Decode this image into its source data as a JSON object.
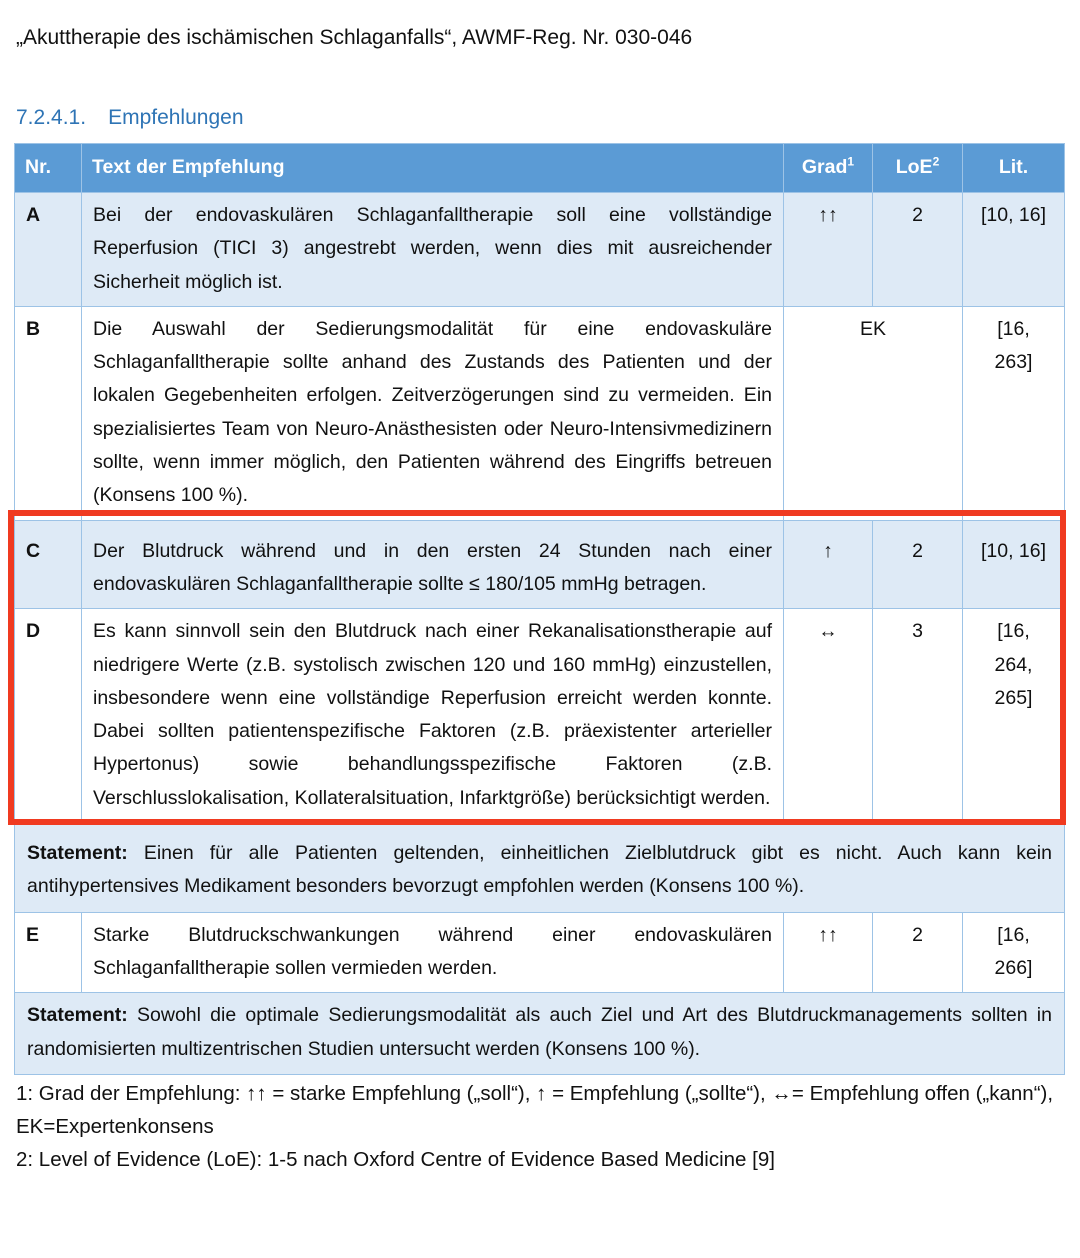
{
  "document_title": "„Akuttherapie des ischämischen Schlaganfalls“, AWMF-Reg. Nr. 030-046",
  "section": {
    "number": "7.2.4.1.",
    "title": "Empfehlungen"
  },
  "table": {
    "headers": {
      "nr": "Nr.",
      "text": "Text der Empfehlung",
      "grad": "Grad",
      "grad_sup": "1",
      "loe": "LoE",
      "loe_sup": "2",
      "lit": "Lit."
    },
    "rows": [
      {
        "nr": "A",
        "text": "Bei der endovaskulären Schlaganfalltherapie soll eine vollständige Reperfusion (TICI 3) angestrebt werden, wenn dies mit ausreichender Sicherheit möglich ist.",
        "grad": "↑↑",
        "loe": "2",
        "lit": "[10, 16]"
      },
      {
        "nr": "B",
        "text": "Die Auswahl der Sedierungsmodalität für eine endovaskuläre Schlaganfalltherapie sollte anhand des Zustands des Patienten und der lokalen Gegebenheiten erfolgen. Zeitverzögerungen sind zu vermeiden. Ein spezialisiertes Team von Neuro-Anästhesisten oder Neuro-Intensivmedizinern sollte, wenn immer möglich, den Patienten während des Eingriffs betreuen (Konsens 100 %).",
        "grad_loe": "EK",
        "lit": "[16, 263]"
      },
      {
        "nr": "C",
        "text": "Der Blutdruck während und in den ersten 24 Stunden nach einer endovaskulären Schlaganfalltherapie sollte ≤ 180/105 mmHg betragen.",
        "grad": "↑",
        "loe": "2",
        "lit": "[10, 16]"
      },
      {
        "nr": "D",
        "text": "Es kann sinnvoll sein den Blutdruck nach einer Rekanalisationstherapie auf niedrigere Werte (z.B. systolisch zwischen 120 und 160 mmHg) einzustellen, insbesondere wenn eine vollständige Reperfusion erreicht werden konnte. Dabei sollten patientenspezifische Faktoren (z.B. präexistenter arterieller Hypertonus) sowie behandlungsspezifische Faktoren (z.B. Verschlusslokalisation, Kollateralsituation, Infarktgröße) berücksichtigt werden.",
        "grad": "↔",
        "loe": "3",
        "lit": "[16, 264, 265]"
      },
      {
        "nr": "E",
        "text": "Starke Blutdruckschwankungen während einer endovaskulären Schlaganfalltherapie sollen vermieden werden.",
        "grad": "↑↑",
        "loe": "2",
        "lit": "[16, 266]"
      }
    ],
    "statements": [
      {
        "label": "Statement:",
        "text": " Einen für alle Patienten geltenden, einheitlichen Zielblutdruck gibt es nicht. Auch kann kein antihypertensives Medikament besonders bevorzugt empfohlen werden (Konsens 100 %)."
      },
      {
        "label": "Statement:",
        "text": " Sowohl die optimale Sedierungsmodalität als auch Ziel und Art des Blutdruckmanagements sollten in randomisierten multizentrischen Studien untersucht werden (Konsens 100 %)."
      }
    ]
  },
  "footnotes": [
    "1: Grad der Empfehlung: ↑↑ = starke Empfehlung („soll“), ↑ = Empfehlung („sollte“), ↔= Empfehlung offen („kann“), EK=Expertenkonsens",
    "2: Level of Evidence (LoE): 1-5 nach Oxford Centre of Evidence Based Medicine [9]"
  ],
  "colors": {
    "header_bg": "#5B9BD5",
    "row_shade": "#DEEAF6",
    "border": "#9DC3E6",
    "highlight": "#F03A20",
    "heading": "#2E74B5"
  }
}
